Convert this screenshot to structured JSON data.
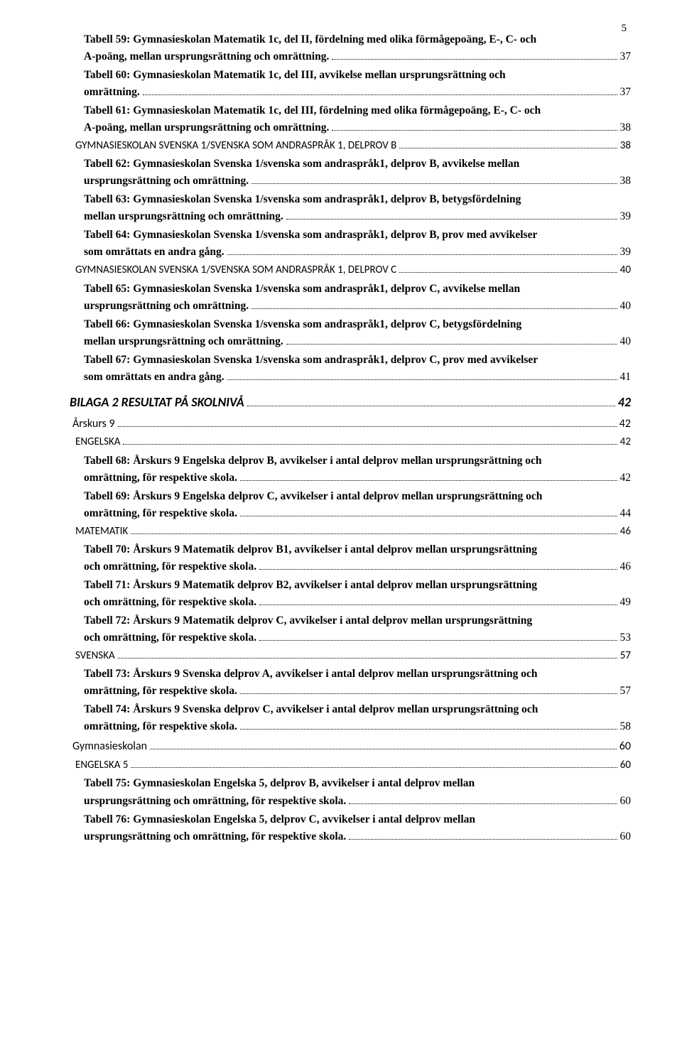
{
  "page_number": "5",
  "text_color": "#000000",
  "background_color": "#ffffff",
  "dot_color": "#000000",
  "toc": [
    {
      "type": "entry",
      "indent": 20,
      "bold": true,
      "lines": [
        "Tabell 59: Gymnasieskolan Matematik 1c, del II, fördelning med olika förmågepoäng, E-, C- och",
        "A-poäng, mellan ursprungsrättning och omrättning."
      ],
      "page": "37"
    },
    {
      "type": "entry",
      "indent": 20,
      "bold": true,
      "lines": [
        "Tabell 60: Gymnasieskolan Matematik 1c, del III, avvikelse mellan ursprungsrättning och",
        "omrättning."
      ],
      "page": "37"
    },
    {
      "type": "entry",
      "indent": 20,
      "bold": true,
      "lines": [
        "Tabell 61: Gymnasieskolan Matematik 1c, del III, fördelning med olika förmågepoäng, E-, C- och",
        "A-poäng, mellan ursprungsrättning och omrättning."
      ],
      "page": "38"
    },
    {
      "type": "section",
      "indent": 8,
      "caps": true,
      "lines": [
        "GYMNASIESKOLAN SVENSKA 1/SVENSKA SOM ANDRASPRÅK 1, DELPROV B"
      ],
      "page": "38",
      "font": "sans"
    },
    {
      "type": "entry",
      "indent": 20,
      "bold": true,
      "lines": [
        "Tabell 62: Gymnasieskolan Svenska 1/svenska som andraspråk1, delprov B, avvikelse mellan",
        "ursprungsrättning och omrättning."
      ],
      "page": "38"
    },
    {
      "type": "entry",
      "indent": 20,
      "bold": true,
      "lines": [
        "Tabell 63: Gymnasieskolan Svenska 1/svenska som andraspråk1, delprov B, betygsfördelning",
        "mellan ursprungsrättning och omrättning."
      ],
      "page": "39"
    },
    {
      "type": "entry",
      "indent": 20,
      "bold": true,
      "lines": [
        "Tabell 64: Gymnasieskolan Svenska 1/svenska som andraspråk1, delprov B, prov med avvikelser",
        "som omrättats en andra gång."
      ],
      "page": "39"
    },
    {
      "type": "section",
      "indent": 8,
      "caps": true,
      "lines": [
        "GYMNASIESKOLAN SVENSKA 1/SVENSKA SOM ANDRASPRÅK 1, DELPROV C"
      ],
      "page": "40",
      "font": "sans"
    },
    {
      "type": "entry",
      "indent": 20,
      "bold": true,
      "lines": [
        "Tabell 65: Gymnasieskolan Svenska 1/svenska som andraspråk1, delprov C, avvikelse mellan",
        "ursprungsrättning och omrättning."
      ],
      "page": "40"
    },
    {
      "type": "entry",
      "indent": 20,
      "bold": true,
      "lines": [
        "Tabell 66: Gymnasieskolan Svenska 1/svenska som andraspråk1, delprov C, betygsfördelning",
        "mellan ursprungsrättning och omrättning."
      ],
      "page": "40"
    },
    {
      "type": "entry",
      "indent": 20,
      "bold": true,
      "lines": [
        "Tabell 67: Gymnasieskolan Svenska 1/svenska som andraspråk1, delprov C, prov med avvikelser",
        "som omrättats en andra gång."
      ],
      "page": "41"
    },
    {
      "type": "level1",
      "indent": 0,
      "bold": true,
      "italic": true,
      "lines": [
        "BILAGA 2 RESULTAT PÅ SKOLNIVÅ"
      ],
      "page": "42",
      "font": "sans",
      "size": 18
    },
    {
      "type": "level2",
      "indent": 4,
      "lines": [
        "Årskurs 9"
      ],
      "page": "42",
      "font": "sans",
      "size": 16
    },
    {
      "type": "level3",
      "indent": 8,
      "caps": true,
      "lines": [
        "ENGELSKA"
      ],
      "page": "42",
      "font": "sans"
    },
    {
      "type": "entry",
      "indent": 20,
      "bold": true,
      "lines": [
        "Tabell 68: Årskurs 9 Engelska delprov B, avvikelser i antal delprov mellan ursprungsrättning och",
        "omrättning, för respektive skola."
      ],
      "page": "42"
    },
    {
      "type": "entry",
      "indent": 20,
      "bold": true,
      "lines": [
        "Tabell 69: Årskurs 9 Engelska delprov C, avvikelser i antal delprov mellan ursprungsrättning och",
        "omrättning, för respektive skola."
      ],
      "page": "44"
    },
    {
      "type": "level3",
      "indent": 8,
      "caps": true,
      "lines": [
        "MATEMATIK"
      ],
      "page": "46",
      "font": "sans"
    },
    {
      "type": "entry",
      "indent": 20,
      "bold": true,
      "lines": [
        "Tabell 70: Årskurs 9 Matematik delprov B1, avvikelser i antal delprov mellan ursprungsrättning",
        "och omrättning, för respektive skola."
      ],
      "page": "46"
    },
    {
      "type": "entry",
      "indent": 20,
      "bold": true,
      "lines": [
        "Tabell 71: Årskurs 9 Matematik delprov B2, avvikelser i antal delprov mellan ursprungsrättning",
        "och omrättning, för respektive skola."
      ],
      "page": "49"
    },
    {
      "type": "entry",
      "indent": 20,
      "bold": true,
      "lines": [
        "Tabell 72: Årskurs 9 Matematik delprov C, avvikelser i antal delprov mellan ursprungsrättning",
        "och omrättning, för respektive skola."
      ],
      "page": "53"
    },
    {
      "type": "level3",
      "indent": 8,
      "caps": true,
      "lines": [
        "SVENSKA"
      ],
      "page": "57",
      "font": "sans"
    },
    {
      "type": "entry",
      "indent": 20,
      "bold": true,
      "lines": [
        "Tabell 73: Årskurs 9 Svenska delprov A, avvikelser i antal delprov mellan ursprungsrättning och",
        "omrättning, för respektive skola."
      ],
      "page": "57"
    },
    {
      "type": "entry",
      "indent": 20,
      "bold": true,
      "lines": [
        "Tabell 74: Årskurs 9 Svenska delprov C, avvikelser i antal delprov mellan ursprungsrättning och",
        "omrättning, för respektive skola."
      ],
      "page": "58"
    },
    {
      "type": "level2",
      "indent": 4,
      "lines": [
        "Gymnasieskolan"
      ],
      "page": "60",
      "font": "sans",
      "size": 16
    },
    {
      "type": "level3",
      "indent": 8,
      "caps": true,
      "lines": [
        "ENGELSKA 5"
      ],
      "page": "60",
      "font": "sans"
    },
    {
      "type": "entry",
      "indent": 20,
      "bold": true,
      "lines": [
        "Tabell 75: Gymnasieskolan Engelska 5, delprov B, avvikelser i antal delprov mellan",
        "ursprungsrättning och omrättning, för respektive skola."
      ],
      "page": "60"
    },
    {
      "type": "entry",
      "indent": 20,
      "bold": true,
      "lines": [
        "Tabell 76: Gymnasieskolan Engelska 5, delprov C, avvikelser i antal delprov mellan",
        "ursprungsrättning och omrättning, för respektive skola."
      ],
      "page": "60"
    }
  ]
}
